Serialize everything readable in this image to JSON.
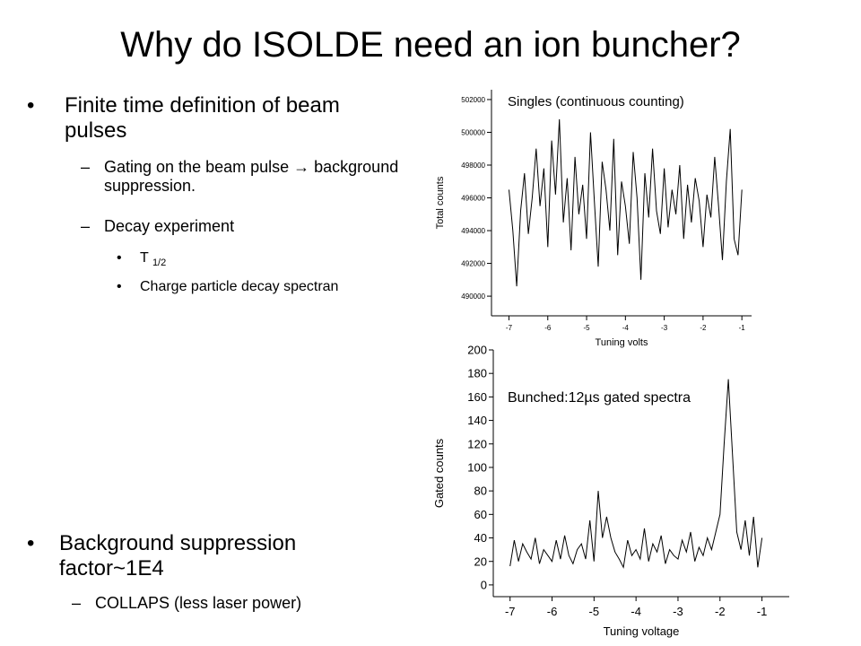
{
  "slide": {
    "title": "Why do ISOLDE need an ion buncher?",
    "bullets": [
      {
        "text": "Finite time definition of beam pulses",
        "sub": [
          {
            "text": "Gating on the beam pulse → background suppression."
          },
          {
            "text": "Decay experiment",
            "sub": [
              {
                "text": "T",
                "subscript": "1/2"
              },
              {
                "text": "Charge particle decay spectran"
              }
            ]
          }
        ]
      },
      {
        "text": "Background suppression factor~1E4",
        "sub": [
          {
            "text": "COLLAPS (less laser power)"
          }
        ]
      }
    ]
  },
  "chart_data": [
    {
      "type": "line",
      "annotation": "Singles (continuous counting)",
      "xlabel": "Tuning volts",
      "ylabel": "Total counts",
      "xlim": [
        -7.45,
        -0.75
      ],
      "xticks": [
        -7,
        -6,
        -5,
        -4,
        -3,
        -2,
        -1
      ],
      "ylim": [
        488800,
        502600
      ],
      "yticks": [
        490000,
        492000,
        494000,
        496000,
        498000,
        500000,
        502000
      ],
      "color": "#000000",
      "x": [
        -7,
        -6.9,
        -6.8,
        -6.7,
        -6.6,
        -6.5,
        -6.4,
        -6.3,
        -6.2,
        -6.1,
        -6,
        -5.9,
        -5.8,
        -5.7,
        -5.6,
        -5.5,
        -5.4,
        -5.3,
        -5.2,
        -5.1,
        -5,
        -4.9,
        -4.8,
        -4.7,
        -4.6,
        -4.5,
        -4.4,
        -4.3,
        -4.2,
        -4.1,
        -4,
        -3.9,
        -3.8,
        -3.7,
        -3.6,
        -3.5,
        -3.4,
        -3.3,
        -3.2,
        -3.1,
        -3,
        -2.9,
        -2.8,
        -2.7,
        -2.6,
        -2.5,
        -2.4,
        -2.3,
        -2.2,
        -2.1,
        -2,
        -1.9,
        -1.8,
        -1.7,
        -1.6,
        -1.5,
        -1.4,
        -1.3,
        -1.2,
        -1.1,
        -1
      ],
      "values": [
        496500,
        494000,
        490600,
        495200,
        497500,
        493800,
        496000,
        499000,
        495500,
        497800,
        493000,
        499500,
        496200,
        500800,
        494500,
        497200,
        492800,
        498500,
        495000,
        496800,
        493500,
        500000,
        495800,
        491800,
        498200,
        496500,
        494000,
        499600,
        492500,
        497000,
        495500,
        493200,
        498800,
        496000,
        491000,
        497500,
        494800,
        499000,
        495200,
        493800,
        497800,
        494200,
        496500,
        495000,
        498000,
        493500,
        496800,
        494500,
        497200,
        495800,
        493000,
        496200,
        494800,
        498500,
        495500,
        492200,
        497000,
        500200,
        493500,
        492500,
        496500
      ]
    },
    {
      "type": "line",
      "annotation": "Bunched:12µs gated spectra",
      "xlabel": "Tuning voltage",
      "ylabel": "Gated counts",
      "xlim": [
        -7.4,
        -0.35
      ],
      "xticks": [
        -7,
        -6,
        -5,
        -4,
        -3,
        -2,
        -1
      ],
      "ylim": [
        -10,
        200
      ],
      "yticks": [
        0,
        20,
        40,
        60,
        80,
        100,
        120,
        140,
        160,
        180,
        200
      ],
      "color": "#000000",
      "x": [
        -7,
        -6.9,
        -6.8,
        -6.7,
        -6.6,
        -6.5,
        -6.4,
        -6.3,
        -6.2,
        -6.1,
        -6,
        -5.9,
        -5.8,
        -5.7,
        -5.6,
        -5.5,
        -5.4,
        -5.3,
        -5.2,
        -5.1,
        -5,
        -4.9,
        -4.8,
        -4.7,
        -4.6,
        -4.5,
        -4.4,
        -4.3,
        -4.2,
        -4.1,
        -4,
        -3.9,
        -3.8,
        -3.7,
        -3.6,
        -3.5,
        -3.4,
        -3.3,
        -3.2,
        -3.1,
        -3,
        -2.9,
        -2.8,
        -2.7,
        -2.6,
        -2.5,
        -2.4,
        -2.3,
        -2.2,
        -2.1,
        -2,
        -1.9,
        -1.8,
        -1.7,
        -1.6,
        -1.5,
        -1.4,
        -1.3,
        -1.2,
        -1.1,
        -1
      ],
      "values": [
        16,
        38,
        20,
        35,
        28,
        22,
        40,
        18,
        30,
        25,
        20,
        38,
        22,
        42,
        25,
        18,
        30,
        35,
        22,
        55,
        20,
        80,
        40,
        58,
        40,
        28,
        22,
        15,
        38,
        25,
        30,
        22,
        48,
        20,
        35,
        28,
        42,
        18,
        30,
        25,
        22,
        38,
        28,
        45,
        20,
        32,
        25,
        40,
        30,
        45,
        60,
        120,
        175,
        110,
        45,
        30,
        55,
        25,
        58,
        15,
        40
      ]
    }
  ]
}
